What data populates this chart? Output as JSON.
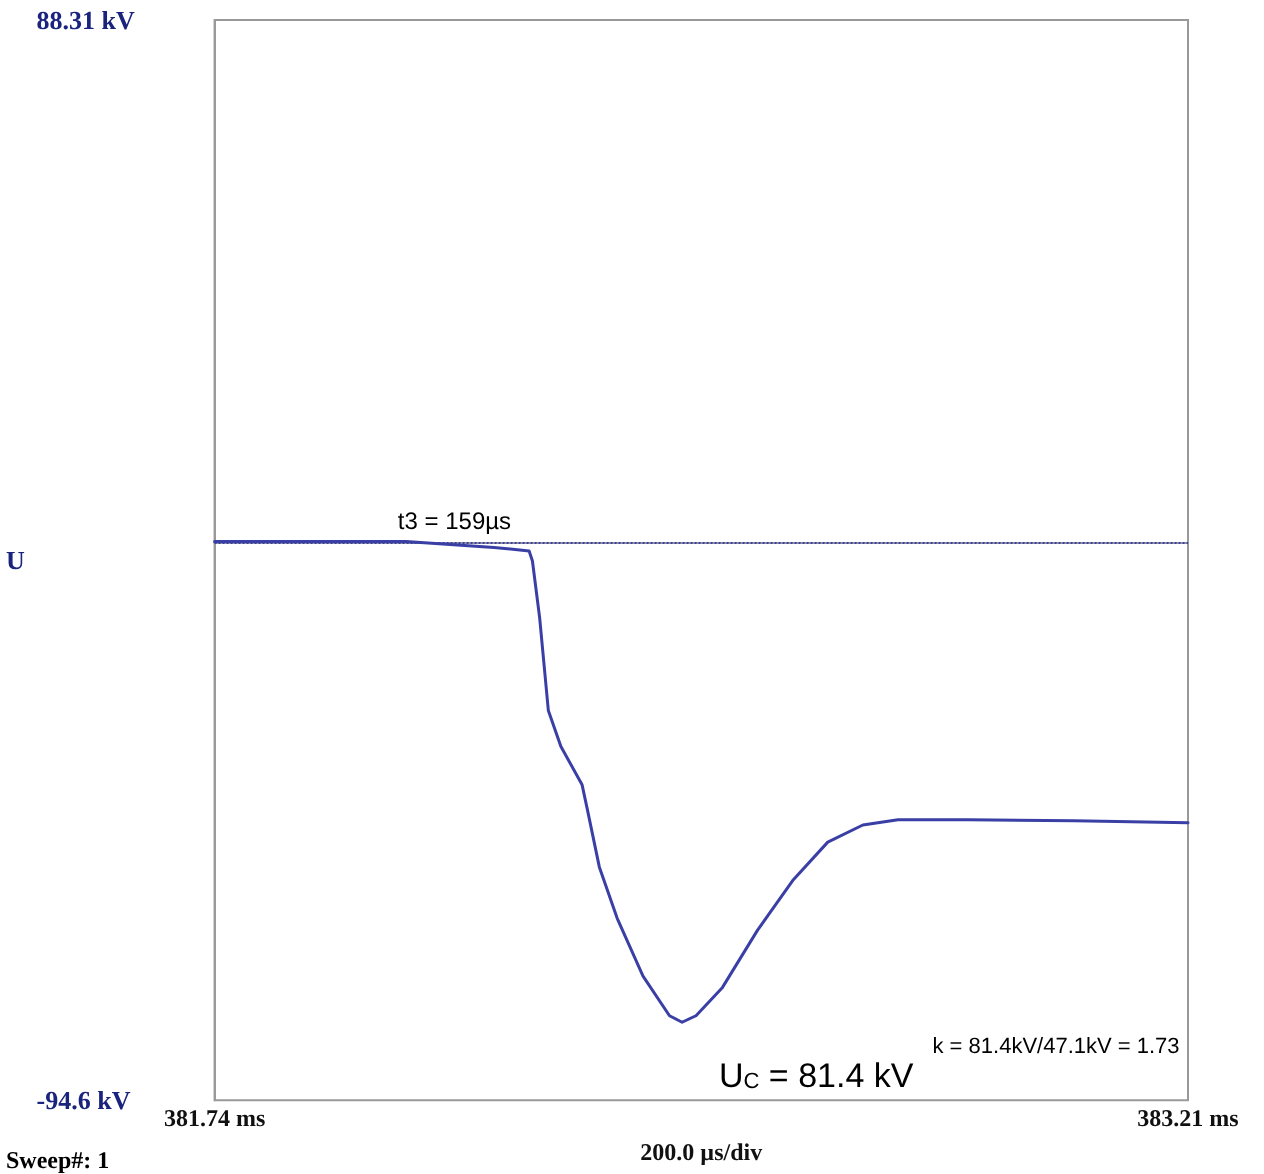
{
  "chart_data": {
    "type": "line",
    "ylabel": "U",
    "xlabel": "200.0 µs/div",
    "annotations": [
      "t3 = 159µs",
      "k = 81.4kV/47.1kV = 1.73",
      "U$_{C}$ = 81.4 kV",
      "Sweep#: 1"
    ],
    "xlim": [
      381.74,
      383.21
    ],
    "xticks": [
      {
        "value": 381.74,
        "label": "381.74 ms"
      },
      {
        "value": 383.21,
        "label": "383.21 ms"
      }
    ],
    "ylim": [
      -94.6,
      88.31
    ],
    "yticks": [
      {
        "value": 88.31,
        "label": "88.31 kV"
      },
      {
        "value": -94.6,
        "label": "-94.6 kV"
      }
    ],
    "grid": false,
    "marker": "none",
    "line_style": "solid",
    "ref_lines": [
      {
        "axis": "y",
        "value": 0,
        "label": null,
        "color": "#3a3fa6",
        "line_style": "dotted"
      }
    ],
    "series": [
      {
        "color": "#3a3fa6",
        "x": [
          381.74,
          382.029,
          382.162,
          382.215,
          382.22,
          382.231,
          382.244,
          382.263,
          382.295,
          382.303,
          382.321,
          382.348,
          382.387,
          382.427,
          382.446,
          382.467,
          382.507,
          382.56,
          382.613,
          382.666,
          382.719,
          382.772,
          382.878,
          383.038,
          383.21
        ],
        "values": [
          0,
          0,
          -1.0,
          -1.6,
          -3.3,
          -13.0,
          -28.6,
          -34.7,
          -41.2,
          -45.4,
          -55.1,
          -63.8,
          -73.6,
          -80.3,
          -81.4,
          -80.3,
          -75.5,
          -65.8,
          -57.4,
          -50.9,
          -48.0,
          -47.1,
          -47.1,
          -47.3,
          -47.6
        ]
      }
    ]
  }
}
